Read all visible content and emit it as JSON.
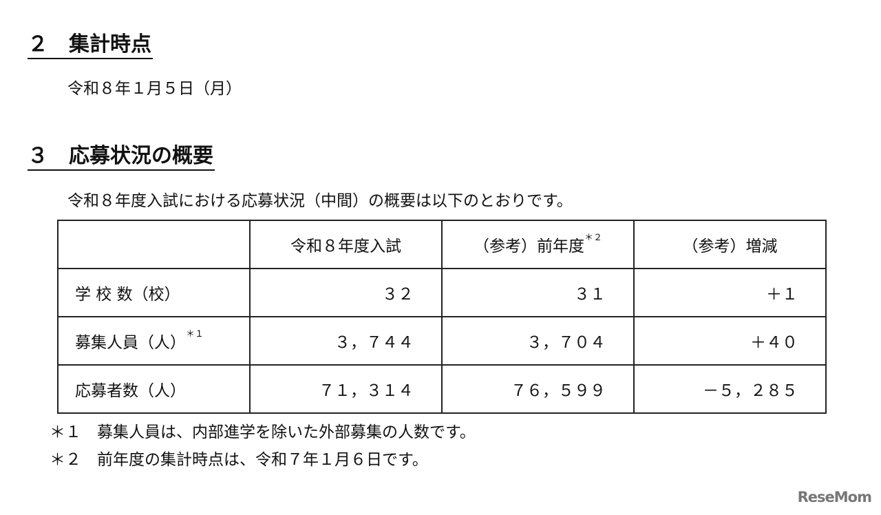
{
  "section2": {
    "heading": "２　集計時点",
    "date": "令和８年１月５日（月）"
  },
  "section3": {
    "heading": "３　応募状況の概要",
    "intro": "令和８年度入試における応募状況（中間）の概要は以下のとおりです。"
  },
  "table": {
    "headers": [
      "",
      "令和８年度入試",
      "（参考）前年度",
      "（参考）増減"
    ],
    "header_note": "＊２",
    "rows": [
      {
        "label": "学 校 数（校）",
        "note": "",
        "values": [
          "３２",
          "３１",
          "＋１"
        ]
      },
      {
        "label": "募集人員（人）",
        "note": "＊１",
        "values": [
          "３，７４４",
          "３，７０４",
          "＋４０"
        ]
      },
      {
        "label": "応募者数（人）",
        "note": "",
        "values": [
          "７１，３１４",
          "７６，５９９",
          "－５，２８５"
        ]
      }
    ]
  },
  "footnotes": [
    "＊１　募集人員は、内部進学を除いた外部募集の人数です。",
    "＊２　前年度の集計時点は、令和７年１月６日です。"
  ],
  "watermark": "ReseMom"
}
